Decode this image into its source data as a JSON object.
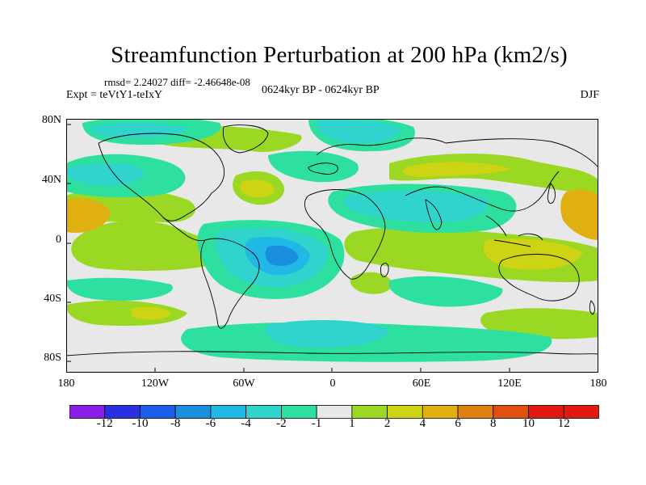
{
  "title": "Streamfunction Perturbation at 200 hPa (km2/s)",
  "stats": "rmsd= 2.24027 diff= -2.46648e-08",
  "experiment": "Expt = teVtY1-teIxY",
  "period": "0624kyr BP - 0624kyr BP",
  "season": "DJF",
  "lat_labels": [
    "80N",
    "40N",
    "0",
    "40S",
    "80S"
  ],
  "lon_labels": [
    "180",
    "120W",
    "60W",
    "0",
    "60E",
    "120E",
    "180"
  ],
  "colorbar": {
    "labels": [
      "-12",
      "-10",
      "-8",
      "-6",
      "-4",
      "-2",
      "-1",
      "1",
      "2",
      "4",
      "6",
      "8",
      "10",
      "12"
    ],
    "colors": [
      "#8a1ee6",
      "#2a2fe0",
      "#1b5de8",
      "#1a8fe0",
      "#22b8e6",
      "#30d4cc",
      "#2ee0a0",
      "#e8e8e8",
      "#9ad824",
      "#cdd414",
      "#e0b010",
      "#e08010",
      "#e05010",
      "#e01a10"
    ]
  },
  "colors": {
    "ocean_bg": "#e8e8e8",
    "coast": "#000000"
  }
}
